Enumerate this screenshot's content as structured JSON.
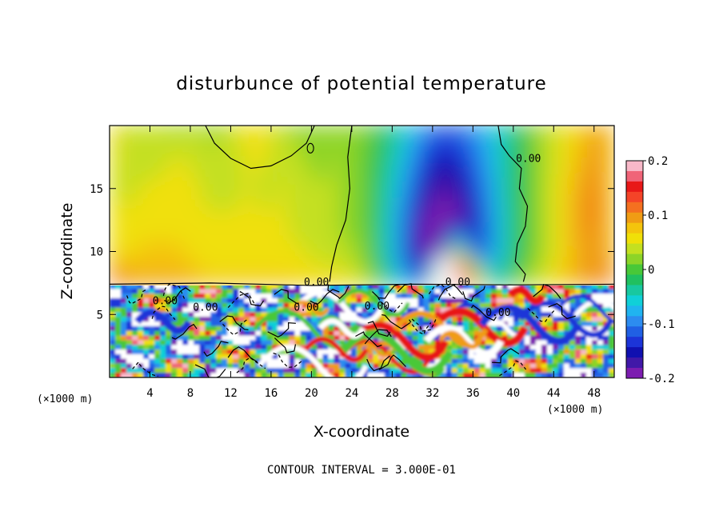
{
  "chart_data": {
    "type": "heatmap",
    "title": "disturbunce of potential temperature",
    "xlabel": "X-coordinate",
    "ylabel": "Z-coordinate",
    "x_unit": "(×1000 m)",
    "y_unit": "(×1000 m)",
    "xlim": [
      0,
      50
    ],
    "ylim": [
      0,
      20
    ],
    "x_ticks": [
      4,
      8,
      12,
      16,
      20,
      24,
      28,
      32,
      36,
      40,
      44,
      48
    ],
    "y_ticks": [
      5,
      10,
      15
    ],
    "colorbar": {
      "range": [
        -0.2,
        0.2
      ],
      "tick_values": [
        0.2,
        0.1,
        0,
        -0.1,
        -0.2
      ],
      "tick_labels": [
        "0.2",
        "0.1",
        "0",
        "-0.1",
        "-0.2"
      ],
      "colors": [
        "#f8b8c8",
        "#f06478",
        "#e81818",
        "#f44428",
        "#f47020",
        "#f09c14",
        "#f4c40c",
        "#f0e008",
        "#c4e020",
        "#8cd428",
        "#48c838",
        "#20c060",
        "#18c8a0",
        "#10d0d8",
        "#20b4f0",
        "#2c8cf0",
        "#2060e4",
        "#1c34d8",
        "#1010b0",
        "#4018a8",
        "#7c1cb0"
      ]
    },
    "contour_labels": [
      {
        "text": "0.00",
        "x": 41.5,
        "z": 17.1
      },
      {
        "text": "0.00",
        "x": 20.5,
        "z": 7.3
      },
      {
        "text": "0.00",
        "x": 34.5,
        "z": 7.3
      },
      {
        "text": "0.00",
        "x": 19.5,
        "z": 5.3
      },
      {
        "text": "0.00",
        "x": 26.5,
        "z": 5.4
      },
      {
        "text": "0.00",
        "x": 5.5,
        "z": 5.8
      },
      {
        "text": "0.00",
        "x": 9.5,
        "z": 5.3
      },
      {
        "text": "0.00",
        "x": 38.5,
        "z": 4.9
      }
    ],
    "upper_field": [
      [
        0.08,
        0.03,
        0.03,
        0.03,
        0.02,
        0.03,
        0.02,
        0.04,
        0.06,
        0.05,
        0.03,
        0.02,
        0.03,
        0.02,
        0.03,
        0.0,
        -0.02,
        -0.05,
        -0.09,
        -0.11,
        -0.11,
        -0.09,
        -0.06,
        -0.03,
        0.0,
        0.03,
        0.05,
        0.07,
        0.09,
        0.08
      ],
      [
        0.06,
        0.03,
        0.04,
        0.04,
        0.05,
        0.04,
        0.03,
        0.04,
        0.05,
        0.05,
        0.04,
        0.03,
        0.02,
        0.03,
        0.02,
        0.0,
        -0.03,
        -0.07,
        -0.12,
        -0.15,
        -0.14,
        -0.11,
        -0.07,
        -0.03,
        0.0,
        0.03,
        0.05,
        0.08,
        0.1,
        0.07
      ],
      [
        0.05,
        0.04,
        0.05,
        0.05,
        0.06,
        0.05,
        0.04,
        0.04,
        0.05,
        0.04,
        0.05,
        0.04,
        0.03,
        0.03,
        0.02,
        0.0,
        -0.04,
        -0.09,
        -0.15,
        -0.18,
        -0.17,
        -0.13,
        -0.08,
        -0.03,
        0.0,
        0.03,
        0.06,
        0.09,
        0.11,
        0.06
      ],
      [
        0.06,
        0.05,
        0.06,
        0.06,
        0.06,
        0.05,
        0.05,
        0.05,
        0.05,
        0.05,
        0.05,
        0.04,
        0.04,
        0.03,
        0.02,
        0.0,
        -0.05,
        -0.11,
        -0.18,
        -0.2,
        -0.19,
        -0.15,
        -0.09,
        -0.03,
        0.0,
        0.03,
        0.06,
        0.1,
        0.11,
        0.07
      ],
      [
        0.07,
        0.06,
        0.07,
        0.07,
        0.07,
        0.06,
        0.05,
        0.05,
        0.06,
        0.05,
        0.05,
        0.05,
        0.04,
        0.03,
        0.03,
        0.0,
        -0.05,
        -0.12,
        -0.19,
        -0.21,
        0.05,
        -0.16,
        -0.09,
        -0.03,
        0.0,
        0.03,
        0.06,
        0.09,
        0.1,
        0.08
      ],
      [
        0.1,
        0.08,
        0.08,
        0.08,
        0.08,
        0.07,
        0.06,
        0.06,
        0.06,
        0.06,
        0.06,
        0.06,
        0.05,
        0.05,
        0.04,
        0.01,
        -0.04,
        -0.1,
        -0.16,
        0.08,
        0.2,
        0.05,
        -0.08,
        -0.02,
        0.01,
        0.04,
        0.07,
        0.09,
        0.1,
        0.09
      ],
      [
        0.14,
        0.11,
        0.1,
        0.1,
        0.1,
        0.09,
        0.08,
        0.08,
        0.08,
        0.08,
        0.08,
        0.07,
        0.07,
        0.07,
        0.06,
        0.03,
        -0.02,
        -0.07,
        -0.12,
        0.1,
        0.2,
        0.08,
        -0.04,
        0.0,
        0.03,
        0.05,
        0.07,
        0.09,
        0.11,
        0.12
      ]
    ],
    "upper_field_z_rows": [
      20,
      17.5,
      15,
      12.5,
      10,
      8.5,
      7.5
    ],
    "lower_field_note": "turbulent mixed layer below z≈7.4 with alternating values spanning -0.2 to 0.2"
  },
  "footer": "CONTOUR INTERVAL = 3.000E-01"
}
